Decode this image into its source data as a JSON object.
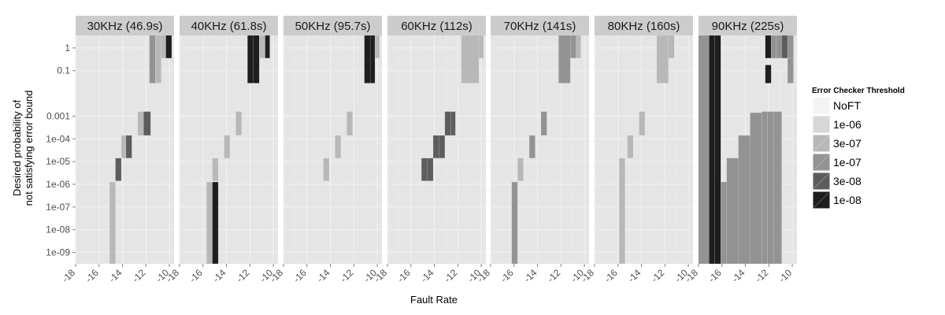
{
  "chart_data": {
    "type": "heatmap",
    "xlabel": "Fault Rate",
    "ylabel_lines": [
      "Desired probability of",
      "not satisfying error bound"
    ],
    "x_range": [
      -18,
      -9.6
    ],
    "x_ticks": [
      -18,
      -16,
      -14,
      -12,
      -10
    ],
    "y_ticks": [
      "1",
      "0.1",
      "0.001",
      "1e-04",
      "1e-05",
      "1e-06",
      "1e-07",
      "1e-08",
      "1e-09"
    ],
    "y_log_range": [
      -9.5,
      0.55
    ],
    "grid": true,
    "legend": {
      "title": "Error Checker Threshold",
      "position": "right",
      "levels": [
        "NoFT",
        "1e-06",
        "3e-07",
        "1e-07",
        "3e-08",
        "1e-08"
      ],
      "colors": [
        "#f4f4f4",
        "#d6d6d6",
        "#b8b8b8",
        "#939393",
        "#5d5d5d",
        "#1e1e1e"
      ]
    },
    "facets": [
      {
        "label": "30KHz (46.9s)",
        "columns": [
          {
            "x0": -15.1,
            "x1": -14.6,
            "level": "3e-07",
            "y_top": -5.9,
            "y_bottom": -9.5
          },
          {
            "x0": -14.6,
            "x1": -14.1,
            "level": "3e-08",
            "y_top": -4.85,
            "y_bottom": -5.85
          },
          {
            "x0": -14.1,
            "x1": -13.7,
            "level": "3e-07",
            "y_top": -3.85,
            "y_bottom": -4.85
          },
          {
            "x0": -13.7,
            "x1": -13.2,
            "level": "3e-08",
            "y_top": -3.85,
            "y_bottom": -4.85
          },
          {
            "x0": -12.7,
            "x1": -12.2,
            "level": "3e-07",
            "y_top": -2.8,
            "y_bottom": -3.85
          },
          {
            "x0": -12.2,
            "x1": -11.6,
            "level": "3e-08",
            "y_top": -2.8,
            "y_bottom": -3.85
          },
          {
            "x0": -11.7,
            "x1": -11.2,
            "level": "1e-07",
            "y_top": 0.55,
            "y_bottom": -1.55
          },
          {
            "x0": -11.2,
            "x1": -10.7,
            "level": "3e-07",
            "y_top": 0.55,
            "y_bottom": -1.55
          },
          {
            "x0": -10.7,
            "x1": -10.3,
            "level": "3e-07",
            "y_top": 0.55,
            "y_bottom": -0.45
          },
          {
            "x0": -10.3,
            "x1": -9.8,
            "level": "1e-08",
            "y_top": 0.55,
            "y_bottom": -0.45
          }
        ]
      },
      {
        "label": "40KHz (61.8s)",
        "columns": [
          {
            "x0": -15.7,
            "x1": -15.2,
            "level": "3e-07",
            "y_top": -5.9,
            "y_bottom": -9.5
          },
          {
            "x0": -15.2,
            "x1": -14.7,
            "level": "1e-08",
            "y_top": -5.9,
            "y_bottom": -9.5
          },
          {
            "x0": -15.2,
            "x1": -14.7,
            "level": "3e-07",
            "y_top": -4.85,
            "y_bottom": -5.85
          },
          {
            "x0": -14.2,
            "x1": -13.7,
            "level": "3e-07",
            "y_top": -3.85,
            "y_bottom": -4.85
          },
          {
            "x0": -13.2,
            "x1": -12.7,
            "level": "3e-07",
            "y_top": -2.8,
            "y_bottom": -3.85
          },
          {
            "x0": -12.2,
            "x1": -11.7,
            "level": "1e-08",
            "y_top": 0.55,
            "y_bottom": -1.55
          },
          {
            "x0": -11.7,
            "x1": -11.2,
            "level": "1e-08",
            "y_top": 0.55,
            "y_bottom": -1.55
          },
          {
            "x0": -11.2,
            "x1": -10.7,
            "level": "3e-07",
            "y_top": 0.55,
            "y_bottom": -0.45
          },
          {
            "x0": -10.7,
            "x1": -10.3,
            "level": "1e-08",
            "y_top": 0.55,
            "y_bottom": -0.45
          }
        ]
      },
      {
        "label": "50KHz (95.7s)",
        "columns": [
          {
            "x0": -14.6,
            "x1": -14.1,
            "level": "3e-07",
            "y_top": -4.85,
            "y_bottom": -5.85
          },
          {
            "x0": -13.6,
            "x1": -13.1,
            "level": "3e-07",
            "y_top": -3.85,
            "y_bottom": -4.85
          },
          {
            "x0": -12.6,
            "x1": -12.1,
            "level": "3e-07",
            "y_top": -2.8,
            "y_bottom": -3.85
          },
          {
            "x0": -11.1,
            "x1": -10.6,
            "level": "1e-08",
            "y_top": 0.55,
            "y_bottom": -1.55
          },
          {
            "x0": -10.6,
            "x1": -10.2,
            "level": "1e-08",
            "y_top": 0.55,
            "y_bottom": -1.55
          },
          {
            "x0": -10.2,
            "x1": -9.8,
            "level": "3e-07",
            "y_top": 0.55,
            "y_bottom": -0.45
          }
        ]
      },
      {
        "label": "60KHz (112s)",
        "columns": [
          {
            "x0": -15.1,
            "x1": -14.6,
            "level": "3e-08",
            "y_top": -4.85,
            "y_bottom": -5.85
          },
          {
            "x0": -14.6,
            "x1": -14.1,
            "level": "3e-08",
            "y_top": -4.85,
            "y_bottom": -5.85
          },
          {
            "x0": -14.1,
            "x1": -13.6,
            "level": "3e-08",
            "y_top": -3.85,
            "y_bottom": -4.85
          },
          {
            "x0": -13.6,
            "x1": -13.1,
            "level": "3e-08",
            "y_top": -3.85,
            "y_bottom": -4.85
          },
          {
            "x0": -13.1,
            "x1": -12.6,
            "level": "3e-08",
            "y_top": -2.8,
            "y_bottom": -3.85
          },
          {
            "x0": -12.6,
            "x1": -12.2,
            "level": "3e-08",
            "y_top": -2.8,
            "y_bottom": -3.85
          },
          {
            "x0": -11.7,
            "x1": -10.2,
            "level": "3e-07",
            "y_top": 0.55,
            "y_bottom": -1.55
          },
          {
            "x0": -10.2,
            "x1": -9.8,
            "level": "3e-07",
            "y_top": 0.55,
            "y_bottom": -0.45
          }
        ]
      },
      {
        "label": "70KHz (141s)",
        "columns": [
          {
            "x0": -16.2,
            "x1": -15.7,
            "level": "1e-07",
            "y_top": -5.9,
            "y_bottom": -9.5
          },
          {
            "x0": -15.7,
            "x1": -15.2,
            "level": "3e-07",
            "y_top": -4.85,
            "y_bottom": -5.85
          },
          {
            "x0": -14.7,
            "x1": -14.2,
            "level": "1e-07",
            "y_top": -3.85,
            "y_bottom": -4.85
          },
          {
            "x0": -13.7,
            "x1": -13.2,
            "level": "1e-07",
            "y_top": -2.8,
            "y_bottom": -3.85
          },
          {
            "x0": -12.2,
            "x1": -11.2,
            "level": "1e-07",
            "y_top": 0.55,
            "y_bottom": -1.55
          },
          {
            "x0": -11.2,
            "x1": -10.7,
            "level": "1e-07",
            "y_top": 0.55,
            "y_bottom": -0.45
          },
          {
            "x0": -10.7,
            "x1": -10.3,
            "level": "3e-07",
            "y_top": 0.55,
            "y_bottom": -0.45
          }
        ]
      },
      {
        "label": "80KHz (160s)",
        "columns": [
          {
            "x0": -15.9,
            "x1": -15.4,
            "level": "3e-07",
            "y_top": -4.85,
            "y_bottom": -9.5
          },
          {
            "x0": -15.2,
            "x1": -14.7,
            "level": "3e-07",
            "y_top": -3.85,
            "y_bottom": -4.85
          },
          {
            "x0": -14.2,
            "x1": -13.7,
            "level": "3e-07",
            "y_top": -2.8,
            "y_bottom": -3.85
          },
          {
            "x0": -12.7,
            "x1": -11.7,
            "level": "3e-07",
            "y_top": 0.55,
            "y_bottom": -1.55
          },
          {
            "x0": -11.7,
            "x1": -11.2,
            "level": "3e-07",
            "y_top": 0.55,
            "y_bottom": -0.45
          }
        ]
      },
      {
        "label": "90KHz (225s)",
        "columns": [
          {
            "x0": -18,
            "x1": -17.1,
            "level": "1e-07",
            "y_top": 0.55,
            "y_bottom": -9.5
          },
          {
            "x0": -17.1,
            "x1": -16.6,
            "level": "1e-08",
            "y_top": 0.55,
            "y_bottom": -9.5
          },
          {
            "x0": -16.6,
            "x1": -16.1,
            "level": "1e-08",
            "y_top": 0.55,
            "y_bottom": -9.5
          },
          {
            "x0": -16.1,
            "x1": -15.6,
            "level": "1e-07",
            "y_top": -5.9,
            "y_bottom": -9.5
          },
          {
            "x0": -15.6,
            "x1": -14.6,
            "level": "1e-07",
            "y_top": -4.85,
            "y_bottom": -9.5
          },
          {
            "x0": -14.6,
            "x1": -13.6,
            "level": "1e-07",
            "y_top": -3.85,
            "y_bottom": -9.5
          },
          {
            "x0": -13.6,
            "x1": -12.6,
            "level": "1e-07",
            "y_top": -2.85,
            "y_bottom": -9.5
          },
          {
            "x0": -12.6,
            "x1": -12.1,
            "level": "1e-07",
            "y_top": -2.8,
            "y_bottom": -9.5
          },
          {
            "x0": -12.1,
            "x1": -11.6,
            "level": "1e-07",
            "y_top": -2.8,
            "y_bottom": -9.5
          },
          {
            "x0": -11.6,
            "x1": -10.9,
            "level": "1e-07",
            "y_top": -2.8,
            "y_bottom": -9.5
          },
          {
            "x0": -12.3,
            "x1": -11.8,
            "level": "1e-08",
            "y_top": 0.55,
            "y_bottom": -0.45
          },
          {
            "x0": -12.3,
            "x1": -11.8,
            "level": "1e-08",
            "y_top": -0.75,
            "y_bottom": -1.55
          },
          {
            "x0": -11.8,
            "x1": -11.4,
            "level": "1e-07",
            "y_top": 0.55,
            "y_bottom": -0.45
          },
          {
            "x0": -11.4,
            "x1": -10.9,
            "level": "1e-07",
            "y_top": 0.55,
            "y_bottom": -0.45
          },
          {
            "x0": -10.9,
            "x1": -10.4,
            "level": "3e-08",
            "y_top": 0.55,
            "y_bottom": -0.45
          },
          {
            "x0": -10.4,
            "x1": -9.9,
            "level": "1e-07",
            "y_top": 0.55,
            "y_bottom": -0.45
          },
          {
            "x0": -10.4,
            "x1": -9.9,
            "level": "1e-07",
            "y_top": -0.45,
            "y_bottom": -1.55
          }
        ]
      }
    ]
  }
}
